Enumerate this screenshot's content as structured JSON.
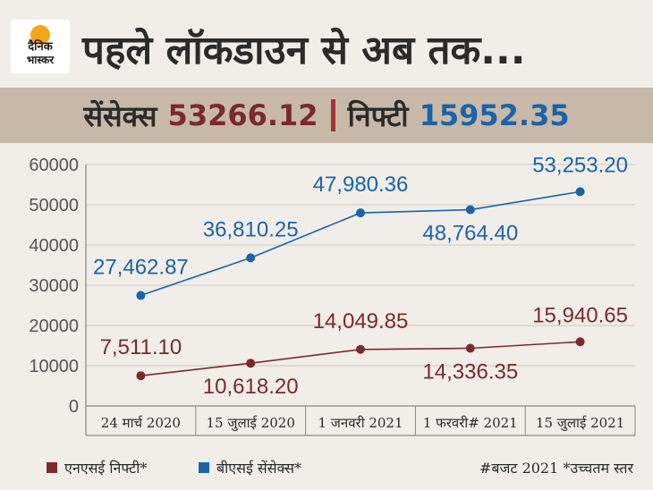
{
  "header": {
    "logo_line1": "दैनिक",
    "logo_line2": "भास्कर",
    "title": "पहले लॉकडाउन से अब तक..."
  },
  "band": {
    "sensex_label": "सेंसेक्स",
    "sensex_value": "53266.12",
    "nifty_label": "निफ्टी",
    "nifty_value": "15952.35"
  },
  "chart_data": {
    "type": "line",
    "categories": [
      "24 मार्च 2020",
      "15 जुलाई 2020",
      "1 जनवरी 2021",
      "1 फरवरी# 2021",
      "15 जुलाई 2021"
    ],
    "ylim": [
      0,
      60000
    ],
    "yticks": [
      0,
      10000,
      20000,
      30000,
      40000,
      50000,
      60000
    ],
    "grid": true,
    "series": [
      {
        "name": "बीएसई सेंसेक्स*",
        "color": "#1a64a8",
        "values": [
          27462.87,
          36810.25,
          47980.36,
          48764.4,
          53253.2
        ],
        "labels": [
          "27,462.87",
          "36,810.25",
          "47,980.36",
          "48,764.40",
          "53,253.20"
        ]
      },
      {
        "name": "एनएसई निफ्टी*",
        "color": "#7a2a2a",
        "values": [
          7511.1,
          10618.2,
          14049.85,
          14336.35,
          15940.65
        ],
        "labels": [
          "7,511.10",
          "10,618.20",
          "14,049.85",
          "14,336.35",
          "15,940.65"
        ]
      }
    ]
  },
  "legend": {
    "nifty": "एनएसई निफ्टी*",
    "sensex": "बीएसई सेंसेक्स*",
    "nifty_color": "#7a2a2a",
    "sensex_color": "#1a64a8"
  },
  "footer": {
    "hashtag": "#बजट 2021 *उच्चतम स्तर"
  }
}
